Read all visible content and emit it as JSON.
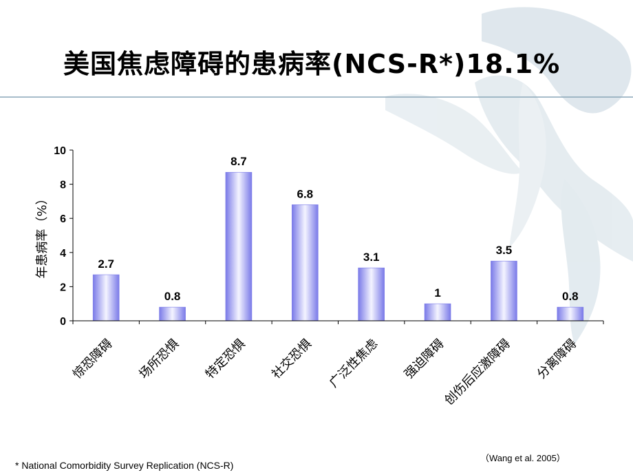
{
  "slide": {
    "title": "美国焦虑障碍的患病率(NCS-R*)18.1%",
    "footnote": "* National Comorbidity Survey Replication (NCS-R)",
    "citation": "（Wang et al. 2005）"
  },
  "colors": {
    "bar_edge": "#7a7ae8",
    "bar_mid": "#f4f4ff",
    "axis": "#000000",
    "header_line": "#8aa6b8",
    "watermark": "#9fb7c7"
  },
  "chart_data": {
    "type": "bar",
    "title": "",
    "xlabel": "",
    "ylabel": "年患病率（%）",
    "ylim": [
      0,
      10
    ],
    "yticks": [
      0,
      2,
      4,
      6,
      8,
      10
    ],
    "grid": false,
    "categories": [
      "惊恐障碍",
      "场所恐惧",
      "特定恐惧",
      "社交恐惧",
      "广泛性焦虑",
      "强迫障碍",
      "创伤后应激障碍",
      "分离障碍"
    ],
    "values": [
      2.7,
      0.8,
      8.7,
      6.8,
      3.1,
      1,
      3.5,
      0.8
    ],
    "value_labels": [
      "2.7",
      "0.8",
      "8.7",
      "6.8",
      "3.1",
      "1",
      "3.5",
      "0.8"
    ]
  }
}
